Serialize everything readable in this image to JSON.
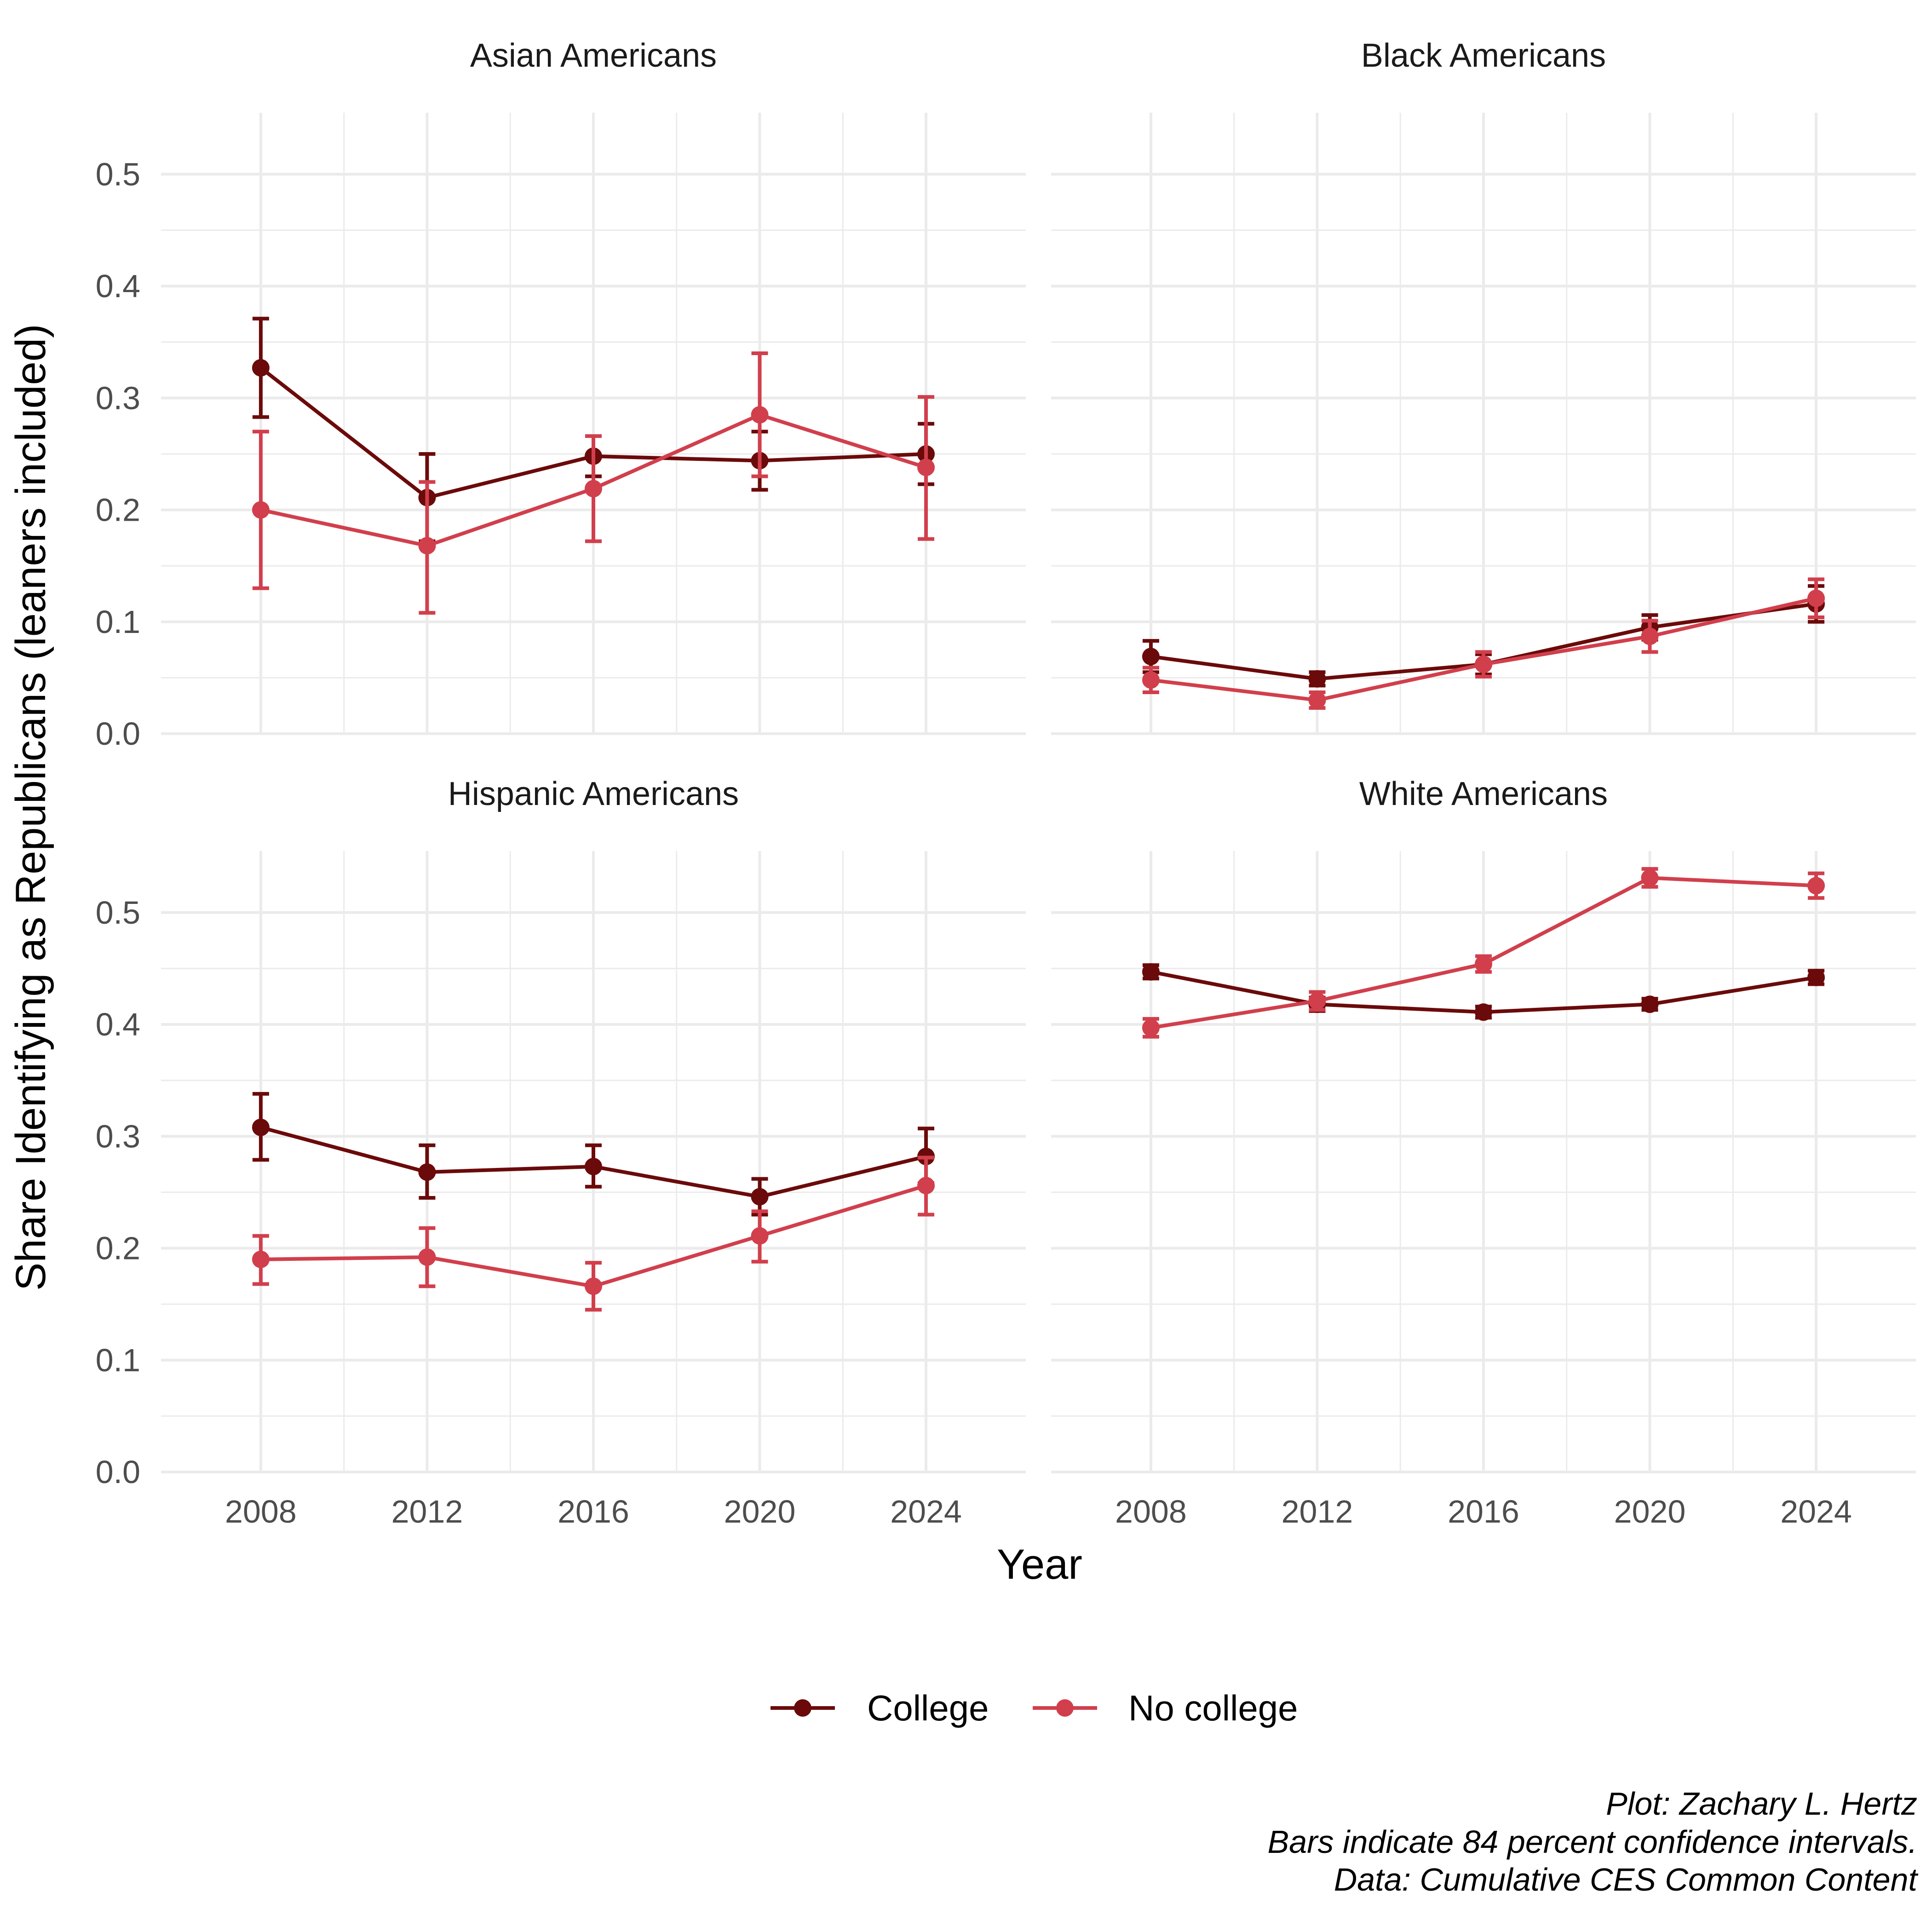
{
  "colors": {
    "College": "#6b0a0a",
    "No college": "#d13f4c",
    "grid": "#ebebeb"
  },
  "chart_data": {
    "type": "line",
    "facets_layout": "2x2",
    "x": [
      2008,
      2012,
      2016,
      2020,
      2024
    ],
    "x_ticks": [
      "2008",
      "2012",
      "2016",
      "2020",
      "2024"
    ],
    "xlim": [
      2005.6,
      2026.4
    ],
    "ylim": [
      0,
      0.555
    ],
    "y_ticks": [
      "0.0",
      "0.1",
      "0.2",
      "0.3",
      "0.4",
      "0.5"
    ],
    "xlabel": "Year",
    "ylabel": "Share Identifying as Republicans (leaners included)",
    "error_bars": "84% confidence intervals",
    "grid": true,
    "legend": {
      "position": "bottom",
      "entries": [
        "College",
        "No college"
      ]
    },
    "facets": [
      {
        "title": "Asian Americans",
        "series": [
          {
            "name": "College",
            "values": [
              0.327,
              0.211,
              0.248,
              0.244,
              0.25
            ],
            "lower": [
              0.283,
              0.172,
              0.23,
              0.218,
              0.223
            ],
            "upper": [
              0.371,
              0.25,
              0.266,
              0.27,
              0.277
            ]
          },
          {
            "name": "No college",
            "values": [
              0.2,
              0.168,
              0.219,
              0.285,
              0.238
            ],
            "lower": [
              0.13,
              0.108,
              0.172,
              0.23,
              0.174
            ],
            "upper": [
              0.27,
              0.225,
              0.266,
              0.34,
              0.301
            ]
          }
        ]
      },
      {
        "title": "Black Americans",
        "series": [
          {
            "name": "College",
            "values": [
              0.069,
              0.049,
              0.062,
              0.095,
              0.116
            ],
            "lower": [
              0.055,
              0.043,
              0.053,
              0.084,
              0.1
            ],
            "upper": [
              0.083,
              0.055,
              0.071,
              0.106,
              0.132
            ]
          },
          {
            "name": "No college",
            "values": [
              0.048,
              0.03,
              0.062,
              0.087,
              0.121
            ],
            "lower": [
              0.037,
              0.023,
              0.051,
              0.073,
              0.104
            ],
            "upper": [
              0.059,
              0.037,
              0.073,
              0.101,
              0.138
            ]
          }
        ]
      },
      {
        "title": "Hispanic Americans",
        "series": [
          {
            "name": "College",
            "values": [
              0.308,
              0.268,
              0.273,
              0.246,
              0.282
            ],
            "lower": [
              0.279,
              0.245,
              0.255,
              0.23,
              0.258
            ],
            "upper": [
              0.338,
              0.292,
              0.292,
              0.262,
              0.307
            ]
          },
          {
            "name": "No college",
            "values": [
              0.19,
              0.192,
              0.166,
              0.211,
              0.256
            ],
            "lower": [
              0.168,
              0.166,
              0.145,
              0.188,
              0.23
            ],
            "upper": [
              0.211,
              0.218,
              0.187,
              0.233,
              0.281
            ]
          }
        ]
      },
      {
        "title": "White Americans",
        "series": [
          {
            "name": "College",
            "values": [
              0.447,
              0.418,
              0.411,
              0.418,
              0.442
            ],
            "lower": [
              0.441,
              0.412,
              0.406,
              0.413,
              0.436
            ],
            "upper": [
              0.453,
              0.424,
              0.416,
              0.423,
              0.448
            ]
          },
          {
            "name": "No college",
            "values": [
              0.397,
              0.421,
              0.454,
              0.531,
              0.524
            ],
            "lower": [
              0.389,
              0.413,
              0.447,
              0.523,
              0.513
            ],
            "upper": [
              0.405,
              0.429,
              0.461,
              0.539,
              0.535
            ]
          }
        ]
      }
    ],
    "caption": [
      "Plot: Zachary L. Hertz",
      "Bars indicate 84 percent confidence intervals.",
      "Data: Cumulative CES Common Content"
    ]
  }
}
